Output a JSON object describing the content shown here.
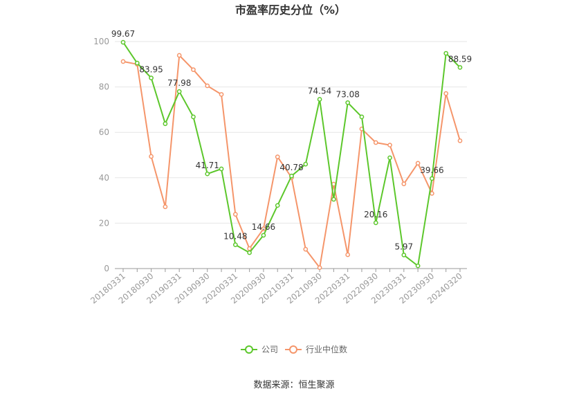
{
  "chart_data": {
    "type": "line",
    "title": "市盈率历史分位（%）",
    "x": [
      "20180331",
      "20180630",
      "20180930",
      "20181231",
      "20190331",
      "20190630",
      "20190930",
      "20191231",
      "20200331",
      "20200630",
      "20200930",
      "20201231",
      "20210331",
      "20210630",
      "20210930",
      "20211231",
      "20220331",
      "20220630",
      "20220930",
      "20221231",
      "20230331",
      "20230630",
      "20230930",
      "20231231",
      "20240320"
    ],
    "x_tick_labels": [
      "20180331",
      "20180930",
      "20190331",
      "20190930",
      "20200331",
      "20200930",
      "20210331",
      "20210930",
      "20220331",
      "20220930",
      "20230331",
      "20230930",
      "20240320"
    ],
    "x_tick_every": 2,
    "ylim": [
      0,
      100
    ],
    "yticks": [
      0,
      20,
      40,
      60,
      80,
      100
    ],
    "grid": true,
    "legend_position": "bottom",
    "series": [
      {
        "name": "公司",
        "color": "#5cc72b",
        "values": [
          99.67,
          90.5,
          83.95,
          63.8,
          77.98,
          66.8,
          41.71,
          43.9,
          10.48,
          7.0,
          14.66,
          27.8,
          40.78,
          46.0,
          74.54,
          30.5,
          73.08,
          66.8,
          20.16,
          48.8,
          5.97,
          1.2,
          39.66,
          94.8,
          88.59
        ],
        "labels": {
          "0": "99.67",
          "2": "83.95",
          "4": "77.98",
          "6": "41.71",
          "8": "10.48",
          "10": "14.66",
          "12": "40.78",
          "14": "74.54",
          "16": "73.08",
          "18": "20.16",
          "20": "5.97",
          "22": "39.66",
          "24": "88.59"
        }
      },
      {
        "name": "行业中位数",
        "color": "#f5956a",
        "values": [
          91.2,
          90.0,
          49.4,
          27.2,
          93.9,
          87.6,
          80.5,
          76.7,
          23.9,
          8.8,
          17.5,
          49.2,
          40.1,
          8.5,
          0.4,
          37.2,
          6.1,
          61.5,
          55.5,
          54.4,
          37.3,
          46.4,
          33.1,
          77.1,
          56.3
        ]
      }
    ]
  },
  "source_text": "数据来源：恒生聚源"
}
